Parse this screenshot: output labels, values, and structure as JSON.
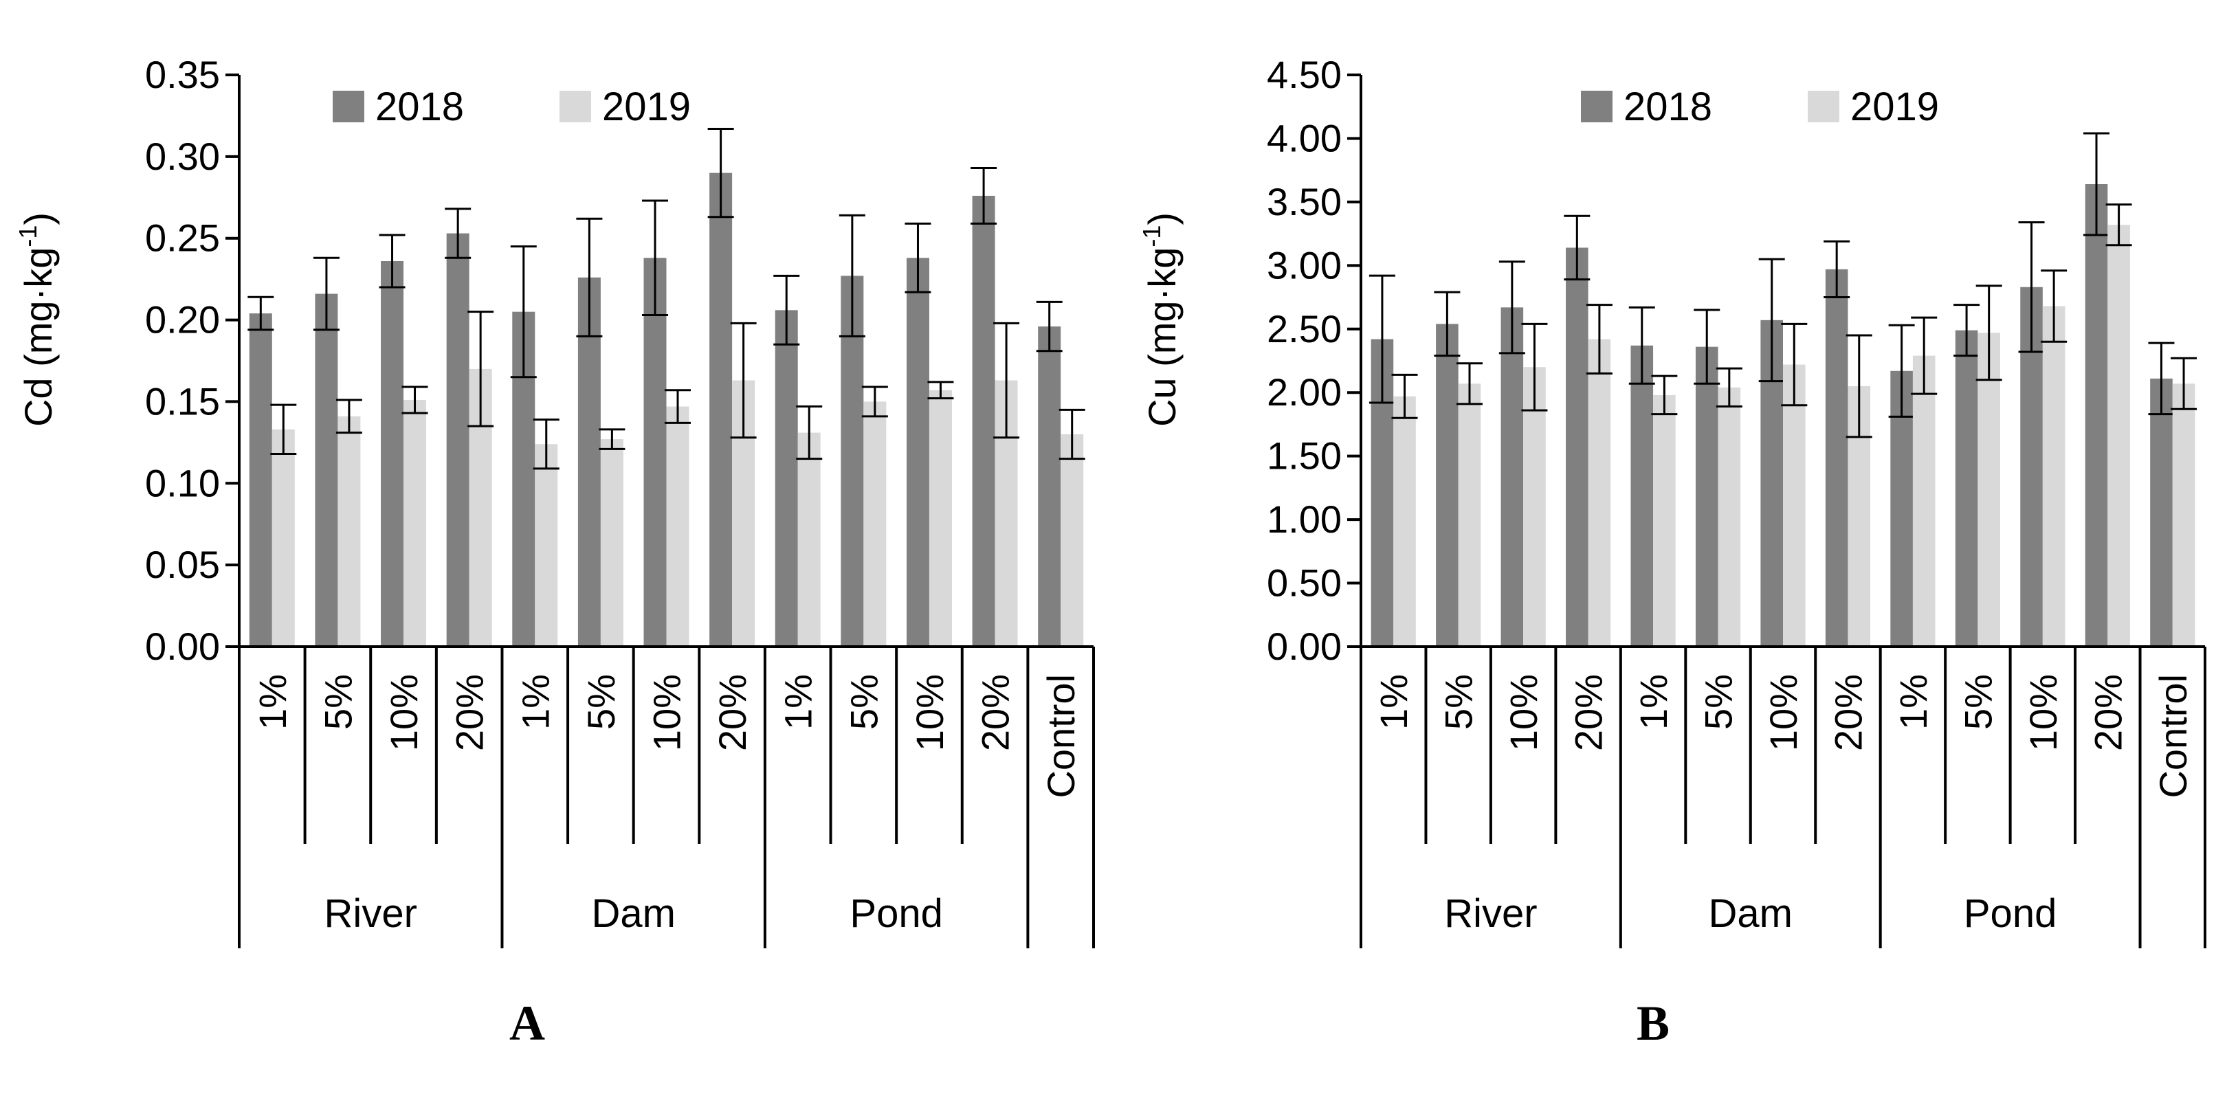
{
  "colors": {
    "series_2018": "#808080",
    "series_2019": "#d9d9d9",
    "axis": "#000000"
  },
  "chart_data": [
    {
      "type": "bar",
      "panel_label": "A",
      "ylabel_main": "Cd (mg·kg",
      "ylabel_sup": "-1",
      "ylabel_close": ")",
      "ylim": [
        0,
        0.35
      ],
      "yticks": [
        "0.00",
        "0.05",
        "0.10",
        "0.15",
        "0.20",
        "0.25",
        "0.30",
        "0.35"
      ],
      "grid": false,
      "legend_position": "top",
      "categories": [
        "1%",
        "5%",
        "10%",
        "20%",
        "1%",
        "5%",
        "10%",
        "20%",
        "1%",
        "5%",
        "10%",
        "20%",
        "Control"
      ],
      "groups": [
        {
          "label": "River",
          "span": 4
        },
        {
          "label": "Dam",
          "span": 4
        },
        {
          "label": "Pond",
          "span": 4
        },
        {
          "label": "",
          "span": 1
        }
      ],
      "series": [
        {
          "name": "2018",
          "values": [
            0.204,
            0.216,
            0.236,
            0.253,
            0.205,
            0.226,
            0.238,
            0.29,
            0.206,
            0.227,
            0.238,
            0.276,
            0.196
          ],
          "errors": [
            0.01,
            0.022,
            0.016,
            0.015,
            0.04,
            0.036,
            0.035,
            0.027,
            0.021,
            0.037,
            0.021,
            0.017,
            0.015
          ]
        },
        {
          "name": "2019",
          "values": [
            0.133,
            0.141,
            0.151,
            0.17,
            0.124,
            0.127,
            0.147,
            0.163,
            0.131,
            0.15,
            0.157,
            0.163,
            0.13
          ],
          "errors": [
            0.015,
            0.01,
            0.008,
            0.035,
            0.015,
            0.006,
            0.01,
            0.035,
            0.016,
            0.009,
            0.005,
            0.035,
            0.015
          ]
        }
      ]
    },
    {
      "type": "bar",
      "panel_label": "B",
      "ylabel_main": "Cu (mg·kg",
      "ylabel_sup": "-1",
      "ylabel_close": ")",
      "ylim": [
        0,
        4.5
      ],
      "yticks": [
        "0.00",
        "0.50",
        "1.00",
        "1.50",
        "2.00",
        "2.50",
        "3.00",
        "3.50",
        "4.00",
        "4.50"
      ],
      "grid": false,
      "legend_position": "top",
      "categories": [
        "1%",
        "5%",
        "10%",
        "20%",
        "1%",
        "5%",
        "10%",
        "20%",
        "1%",
        "5%",
        "10%",
        "20%",
        "Control"
      ],
      "groups": [
        {
          "label": "River",
          "span": 4
        },
        {
          "label": "Dam",
          "span": 4
        },
        {
          "label": "Pond",
          "span": 4
        },
        {
          "label": "",
          "span": 1
        }
      ],
      "series": [
        {
          "name": "2018",
          "values": [
            2.42,
            2.54,
            2.67,
            3.14,
            2.37,
            2.36,
            2.57,
            2.97,
            2.17,
            2.49,
            2.83,
            3.64,
            2.11
          ],
          "errors": [
            0.5,
            0.25,
            0.36,
            0.25,
            0.3,
            0.29,
            0.48,
            0.22,
            0.36,
            0.2,
            0.51,
            0.4,
            0.28
          ]
        },
        {
          "name": "2019",
          "values": [
            1.97,
            2.07,
            2.2,
            2.42,
            1.98,
            2.04,
            2.22,
            2.05,
            2.29,
            2.47,
            2.68,
            3.32,
            2.07
          ],
          "errors": [
            0.17,
            0.16,
            0.34,
            0.27,
            0.15,
            0.15,
            0.32,
            0.4,
            0.3,
            0.37,
            0.28,
            0.16,
            0.2
          ]
        }
      ]
    }
  ]
}
